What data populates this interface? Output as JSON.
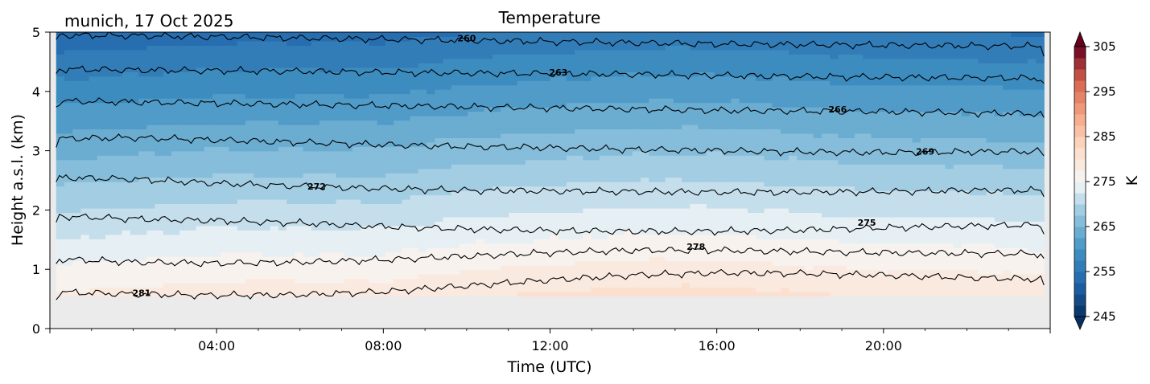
{
  "chart_data": {
    "type": "heatmap",
    "subtype": "filled-contour time-height cross-section",
    "title": "Temperature",
    "location_date": "munich, 17 Oct 2025",
    "xlabel": "Time (UTC)",
    "ylabel": "Height a.s.l. (km)",
    "xlim_hours": [
      0,
      24
    ],
    "ylim_km": [
      0,
      5
    ],
    "x_ticks": [
      {
        "hour": 4,
        "label": "04:00"
      },
      {
        "hour": 8,
        "label": "08:00"
      },
      {
        "hour": 12,
        "label": "12:00"
      },
      {
        "hour": 16,
        "label": "16:00"
      },
      {
        "hour": 20,
        "label": "20:00"
      }
    ],
    "y_ticks": [
      {
        "km": 0,
        "label": "0"
      },
      {
        "km": 1,
        "label": "1"
      },
      {
        "km": 2,
        "label": "2"
      },
      {
        "km": 3,
        "label": "3"
      },
      {
        "km": 4,
        "label": "4"
      },
      {
        "km": 5,
        "label": "5"
      }
    ],
    "data_time_range_hours": [
      0.15,
      23.85
    ],
    "data_height_range_km": [
      0.55,
      5.0
    ],
    "below_data_fill": "#ebebeb",
    "colorbar": {
      "label": "K",
      "cmap": "RdBu_r",
      "vmin": 245,
      "vmax": 305,
      "step": 2.5,
      "ticks": [
        {
          "value": 245,
          "label": "245"
        },
        {
          "value": 255,
          "label": "255"
        },
        {
          "value": 265,
          "label": "265"
        },
        {
          "value": 275,
          "label": "275"
        },
        {
          "value": 285,
          "label": "285"
        },
        {
          "value": 295,
          "label": "295"
        },
        {
          "value": 305,
          "label": "305"
        }
      ],
      "extend": "both"
    },
    "contour_lines": [
      {
        "level": 260,
        "label": "260",
        "heights_km": [
          4.95,
          4.94,
          4.92,
          4.9,
          4.88,
          4.86,
          4.84,
          4.82,
          4.8,
          4.79,
          4.78,
          4.77,
          4.76
        ],
        "label_at": {
          "hour": 10.0,
          "km": 4.9
        }
      },
      {
        "level": 263,
        "label": "263",
        "heights_km": [
          4.38,
          4.36,
          4.35,
          4.34,
          4.32,
          4.31,
          4.3,
          4.29,
          4.27,
          4.25,
          4.24,
          4.23,
          4.22
        ],
        "label_at": {
          "hour": 12.2,
          "km": 4.32
        }
      },
      {
        "level": 266,
        "label": "266",
        "heights_km": [
          3.84,
          3.82,
          3.8,
          3.78,
          3.76,
          3.74,
          3.72,
          3.7,
          3.68,
          3.67,
          3.66,
          3.64,
          3.62
        ],
        "label_at": {
          "hour": 18.9,
          "km": 3.7
        }
      },
      {
        "level": 269,
        "label": "269",
        "heights_km": [
          3.2,
          3.22,
          3.18,
          3.14,
          3.1,
          3.07,
          3.05,
          3.02,
          3.0,
          2.98,
          2.97,
          2.98,
          2.99
        ],
        "label_at": {
          "hour": 21.0,
          "km": 2.99
        }
      },
      {
        "level": 272,
        "label": "272",
        "heights_km": [
          2.55,
          2.52,
          2.45,
          2.4,
          2.36,
          2.33,
          2.32,
          2.31,
          2.3,
          2.3,
          2.31,
          2.33,
          2.33
        ],
        "label_at": {
          "hour": 6.4,
          "km": 2.4
        }
      },
      {
        "level": 275,
        "label": "275",
        "heights_km": [
          1.9,
          1.85,
          1.82,
          1.78,
          1.72,
          1.68,
          1.65,
          1.64,
          1.64,
          1.66,
          1.7,
          1.73,
          1.75
        ],
        "label_at": {
          "hour": 19.6,
          "km": 1.79
        }
      },
      {
        "level": 278,
        "label": "278",
        "heights_km": [
          1.18,
          1.12,
          1.1,
          1.12,
          1.16,
          1.22,
          1.28,
          1.32,
          1.32,
          1.3,
          1.28,
          1.27,
          1.26
        ],
        "label_at": {
          "hour": 15.5,
          "km": 1.38
        }
      },
      {
        "level": 281,
        "label": "281",
        "heights_km": [
          0.62,
          0.58,
          0.56,
          0.57,
          0.62,
          0.72,
          0.82,
          0.9,
          0.94,
          0.93,
          0.9,
          0.86,
          0.83
        ],
        "label_at": {
          "hour": 2.2,
          "km": 0.6
        }
      }
    ],
    "field_description": {
      "surface_temp_K_by_hour": [
        281,
        281.5,
        282,
        282,
        282,
        283,
        283.5,
        284,
        284,
        283.5,
        283,
        283,
        282.5
      ],
      "lapse_K_per_km": 5.6
    }
  }
}
